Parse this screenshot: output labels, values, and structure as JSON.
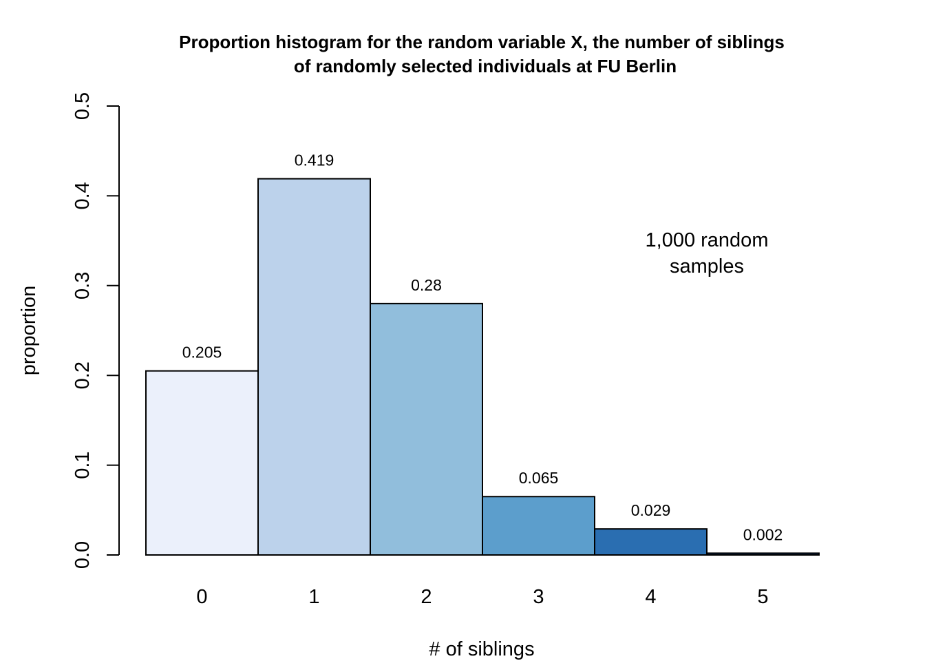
{
  "chart_data": {
    "type": "bar",
    "title": [
      "Proportion histogram for the random variable X, the number of siblings",
      "of randomly selected individuals at FU Berlin"
    ],
    "xlabel": "# of siblings",
    "ylabel": "proportion",
    "categories": [
      "0",
      "1",
      "2",
      "3",
      "4",
      "5"
    ],
    "values": [
      0.205,
      0.419,
      0.28,
      0.065,
      0.029,
      0.002
    ],
    "data_labels": [
      "0.205",
      "0.419",
      "0.28",
      "0.065",
      "0.029",
      "0.002"
    ],
    "bar_colors": [
      "#EBF0FB",
      "#BCD2EB",
      "#91BEDC",
      "#5C9ECC",
      "#2A6EB1",
      "#0A3069"
    ],
    "ylim": [
      0,
      0.5
    ],
    "yticks": [
      0,
      0.1,
      0.2,
      0.3,
      0.4,
      0.5
    ],
    "ytick_labels": [
      "0.0",
      "0.1",
      "0.2",
      "0.3",
      "0.4",
      "0.5"
    ],
    "annotation": [
      "1,000 random",
      "samples"
    ],
    "grid": false,
    "legend": "none"
  }
}
